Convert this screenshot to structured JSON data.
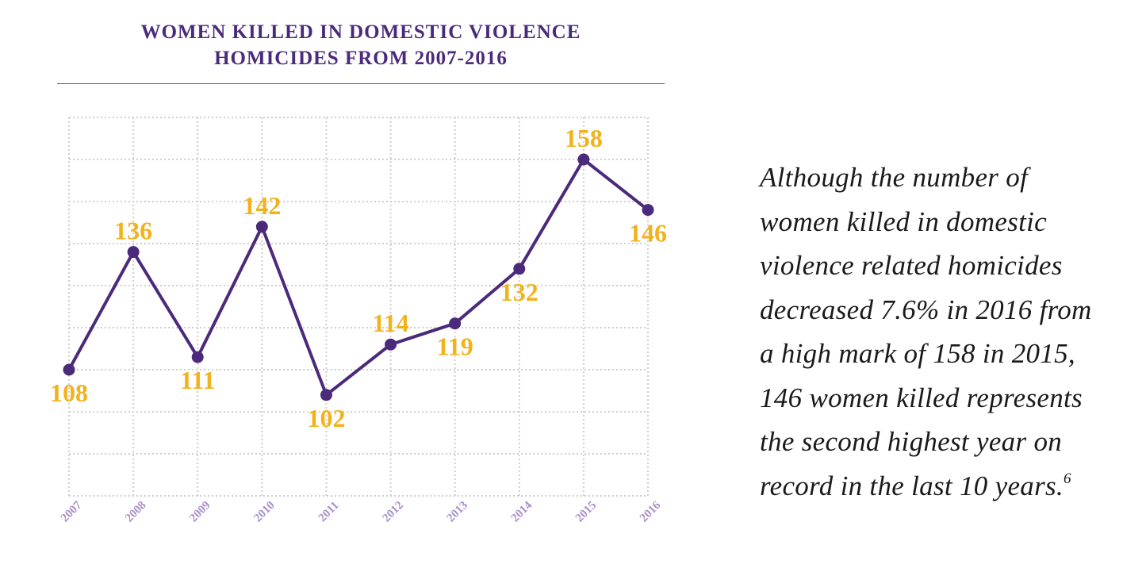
{
  "chart_data": {
    "type": "line",
    "title": "WOMEN KILLED IN DOMESTIC VIOLENCE HOMICIDES FROM 2007-2016",
    "title_lines": [
      "WOMEN KILLED IN DOMESTIC VIOLENCE",
      "HOMICIDES FROM 2007-2016"
    ],
    "categories": [
      "2007",
      "2008",
      "2009",
      "2010",
      "2011",
      "2012",
      "2013",
      "2014",
      "2015",
      "2016"
    ],
    "series": [
      {
        "name": "Women killed",
        "values": [
          108,
          136,
          111,
          142,
          102,
          114,
          119,
          132,
          158,
          146
        ],
        "data_labels": [
          "108",
          "136",
          "111",
          "142",
          "102",
          "114",
          "119",
          "132",
          "158",
          "146"
        ]
      }
    ],
    "label_position": [
      "below",
      "above",
      "below",
      "above",
      "below",
      "above",
      "below",
      "below",
      "above",
      "below"
    ],
    "ylim": [
      78,
      168
    ],
    "grid": true,
    "xlabel": "",
    "ylabel": "",
    "colors": {
      "line": "#4b2a7b",
      "marker": "#4b2a7b",
      "data_label": "#f2b21c",
      "year_label": "#a98fc7",
      "grid": "#cfcfcf",
      "title": "#4b2a7b"
    }
  },
  "side_text": {
    "lines": [
      "Although the number of",
      "women killed in domestic",
      "violence related homicides",
      "decreased 7.6% in 2016 from",
      "a high mark of 158 in 2015,",
      "146 women killed represents",
      "the second highest year on",
      "record in the last 10 years."
    ],
    "footnote": "6"
  }
}
